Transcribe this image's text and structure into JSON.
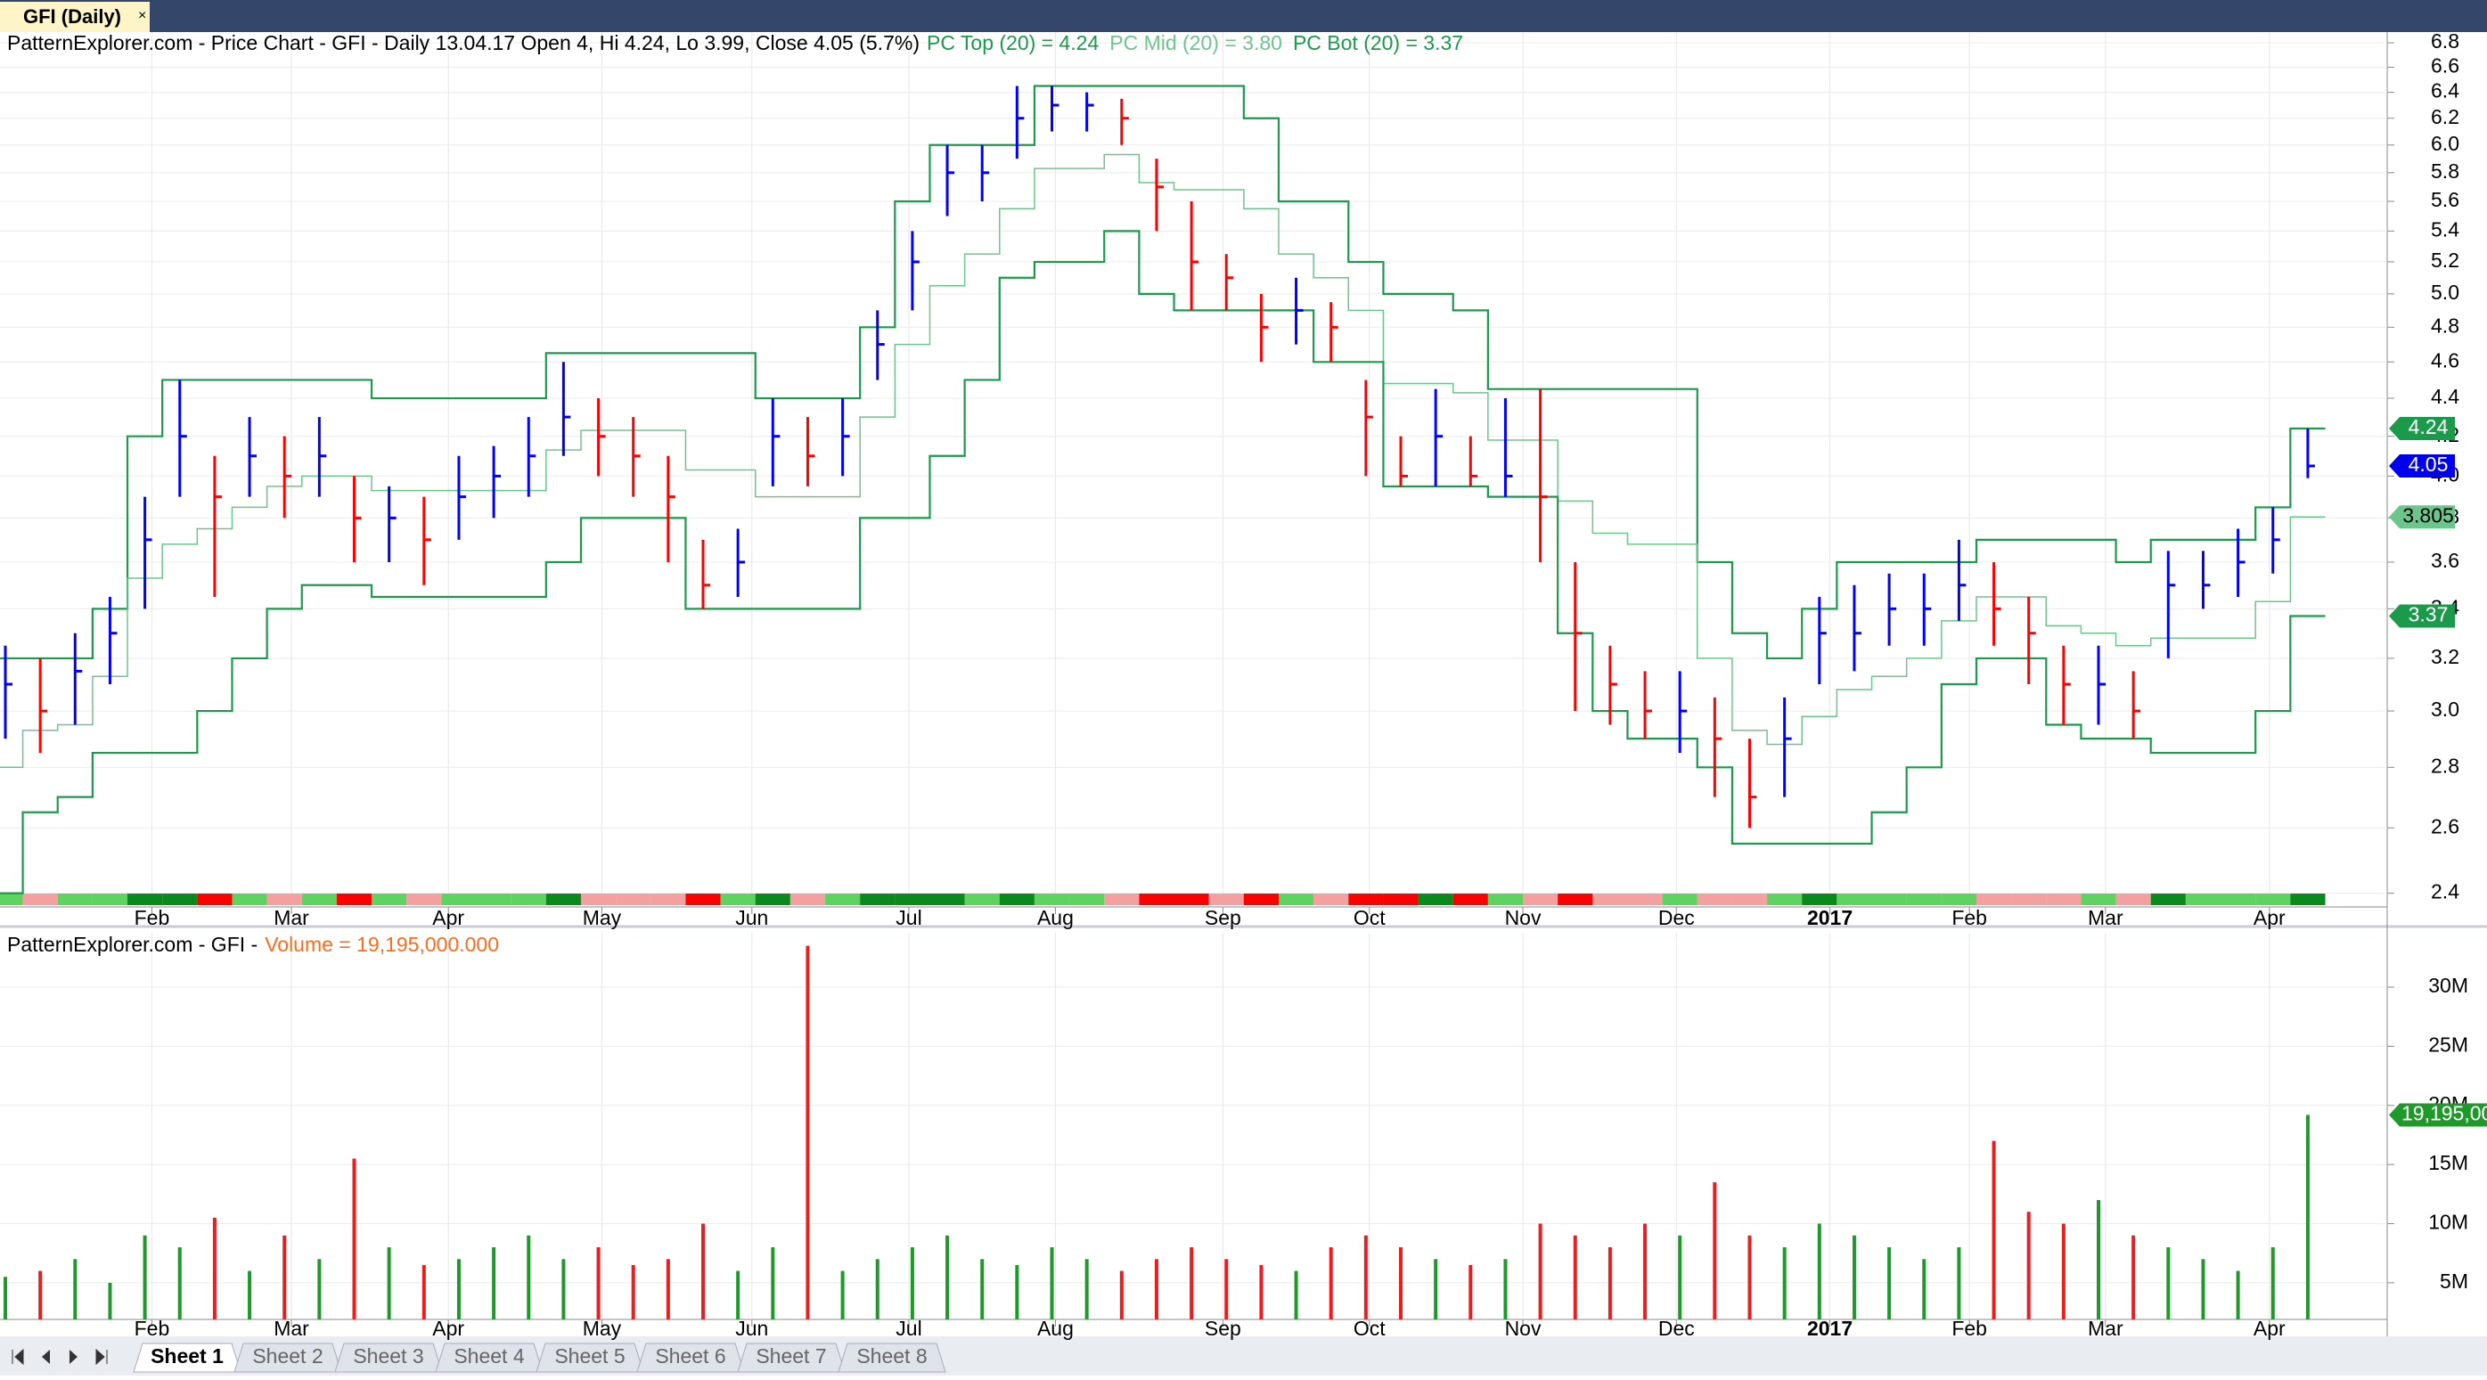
{
  "window": {
    "tab": "GFI (Daily)"
  },
  "sheets": [
    "Sheet 1",
    "Sheet 2",
    "Sheet 3",
    "Sheet 4",
    "Sheet 5",
    "Sheet 6",
    "Sheet 7",
    "Sheet 8"
  ],
  "chart_data": [
    {
      "type": "ohlc",
      "title": "PatternExplorer.com - Price Chart - GFI - Daily 13.04.17 Open 4, Hi 4.24, Lo 3.99, Close 4.05 (5.7%)",
      "categories": [
        null,
        null,
        null,
        null,
        null,
        null,
        null,
        null,
        null,
        null,
        null,
        null,
        null,
        null,
        null,
        null,
        null,
        null,
        null,
        null,
        null,
        null,
        null,
        null,
        null,
        null,
        null,
        null,
        null,
        null,
        null,
        null,
        null,
        null,
        null,
        null,
        null,
        null,
        null,
        null,
        null,
        null,
        null,
        null,
        null,
        null,
        null,
        null,
        null,
        null,
        null,
        null,
        null,
        null,
        null,
        null,
        null,
        null,
        null,
        null,
        null,
        null,
        null,
        null,
        null,
        null,
        null
      ],
      "high": [
        3.25,
        3.2,
        3.3,
        3.45,
        3.9,
        4.5,
        4.1,
        4.3,
        4.2,
        4.3,
        4.0,
        3.95,
        3.9,
        4.1,
        4.15,
        4.3,
        4.6,
        4.4,
        4.3,
        4.1,
        3.7,
        3.75,
        4.4,
        4.3,
        4.4,
        4.9,
        5.4,
        6.0,
        6.0,
        6.45,
        6.45,
        6.4,
        6.35,
        5.9,
        5.6,
        5.25,
        5.0,
        5.1,
        4.95,
        4.5,
        4.2,
        4.45,
        4.2,
        4.4,
        4.45,
        3.6,
        3.25,
        3.15,
        3.15,
        3.05,
        2.9,
        3.05,
        3.45,
        3.5,
        3.55,
        3.55,
        3.7,
        3.6,
        3.45,
        3.25,
        3.25,
        3.15,
        3.65,
        3.65,
        3.75,
        3.85,
        4.24
      ],
      "low": [
        2.9,
        2.85,
        2.95,
        3.1,
        3.4,
        3.9,
        3.45,
        3.9,
        3.8,
        3.9,
        3.6,
        3.6,
        3.5,
        3.7,
        3.8,
        3.9,
        4.1,
        4.0,
        3.9,
        3.6,
        3.4,
        3.45,
        3.95,
        3.95,
        4.0,
        4.5,
        4.9,
        5.5,
        5.6,
        5.9,
        6.1,
        6.1,
        6.0,
        5.4,
        4.9,
        4.9,
        4.6,
        4.7,
        4.6,
        4.0,
        3.95,
        3.95,
        3.95,
        3.9,
        3.6,
        3.0,
        2.95,
        2.9,
        2.85,
        2.7,
        2.6,
        2.7,
        3.1,
        3.15,
        3.25,
        3.25,
        3.35,
        3.25,
        3.1,
        2.95,
        2.95,
        2.9,
        3.2,
        3.4,
        3.45,
        3.55,
        3.99
      ],
      "close": [
        3.1,
        3.0,
        3.15,
        3.3,
        3.7,
        4.2,
        3.9,
        4.1,
        4.0,
        4.1,
        3.8,
        3.8,
        3.7,
        3.9,
        4.0,
        4.1,
        4.3,
        4.2,
        4.1,
        3.9,
        3.5,
        3.6,
        4.2,
        4.1,
        4.2,
        4.7,
        5.2,
        5.8,
        5.8,
        6.2,
        6.3,
        6.3,
        6.2,
        5.7,
        5.2,
        5.1,
        4.8,
        4.9,
        4.8,
        4.3,
        4.0,
        4.2,
        4.0,
        4.0,
        3.9,
        3.3,
        3.1,
        3.0,
        3.0,
        2.9,
        2.7,
        2.9,
        3.3,
        3.3,
        3.4,
        3.4,
        3.5,
        3.4,
        3.3,
        3.1,
        3.1,
        3.0,
        3.5,
        3.5,
        3.6,
        3.7,
        4.05
      ],
      "close_color": "#0000ee",
      "up_color": "#0000ff",
      "down_color": "#ff0000",
      "series": [
        {
          "name": "PC Top (20) = 4.24",
          "color": "#1a9a4a",
          "values": [
            3.2,
            3.2,
            3.2,
            3.4,
            4.2,
            4.5,
            4.5,
            4.5,
            4.5,
            4.5,
            4.5,
            4.4,
            4.4,
            4.4,
            4.4,
            4.4,
            4.65,
            4.65,
            4.65,
            4.65,
            4.65,
            4.65,
            4.4,
            4.4,
            4.4,
            4.8,
            5.6,
            6.0,
            6.0,
            6.0,
            6.45,
            6.45,
            6.45,
            6.45,
            6.45,
            6.45,
            6.2,
            5.6,
            5.6,
            5.2,
            5.0,
            5.0,
            4.9,
            4.45,
            4.45,
            4.45,
            4.45,
            4.45,
            4.45,
            3.6,
            3.3,
            3.2,
            3.4,
            3.6,
            3.6,
            3.6,
            3.6,
            3.7,
            3.7,
            3.7,
            3.7,
            3.6,
            3.7,
            3.7,
            3.7,
            3.85,
            4.24
          ]
        },
        {
          "name": "PC Mid (20) = 3.80",
          "color": "#6cc68c",
          "values": [
            2.8,
            2.93,
            2.95,
            3.13,
            3.53,
            3.68,
            3.75,
            3.85,
            3.95,
            4.0,
            4.0,
            3.93,
            3.93,
            3.93,
            3.93,
            3.93,
            4.13,
            4.23,
            4.23,
            4.23,
            4.03,
            4.03,
            3.9,
            3.9,
            3.9,
            4.3,
            4.7,
            5.05,
            5.25,
            5.55,
            5.83,
            5.83,
            5.93,
            5.73,
            5.68,
            5.68,
            5.55,
            5.25,
            5.1,
            4.9,
            4.48,
            4.48,
            4.43,
            4.18,
            4.18,
            3.88,
            3.73,
            3.68,
            3.68,
            3.2,
            2.93,
            2.88,
            2.98,
            3.08,
            3.13,
            3.2,
            3.35,
            3.45,
            3.45,
            3.33,
            3.3,
            3.25,
            3.28,
            3.28,
            3.28,
            3.43,
            3.805
          ]
        },
        {
          "name": "PC Bot (20) = 3.37",
          "color": "#1a9a4a",
          "values": [
            2.4,
            2.65,
            2.7,
            2.85,
            2.85,
            2.85,
            3.0,
            3.2,
            3.4,
            3.5,
            3.5,
            3.45,
            3.45,
            3.45,
            3.45,
            3.45,
            3.6,
            3.8,
            3.8,
            3.8,
            3.4,
            3.4,
            3.4,
            3.4,
            3.4,
            3.8,
            3.8,
            4.1,
            4.5,
            5.1,
            5.2,
            5.2,
            5.4,
            5.0,
            4.9,
            4.9,
            4.9,
            4.9,
            4.6,
            4.6,
            3.95,
            3.95,
            3.95,
            3.9,
            3.9,
            3.3,
            3.0,
            2.9,
            2.9,
            2.8,
            2.55,
            2.55,
            2.55,
            2.55,
            2.65,
            2.8,
            3.1,
            3.2,
            3.2,
            2.95,
            2.9,
            2.9,
            2.85,
            2.85,
            2.85,
            3.0,
            3.37
          ]
        }
      ],
      "xticks": [
        {
          "value": 4.2,
          "label": "Feb"
        },
        {
          "value": 8.2,
          "label": "Mar"
        },
        {
          "value": 12.7,
          "label": "Apr"
        },
        {
          "value": 17.1,
          "label": "May"
        },
        {
          "value": 21.4,
          "label": "Jun"
        },
        {
          "value": 25.9,
          "label": "Jul"
        },
        {
          "value": 30.1,
          "label": "Aug"
        },
        {
          "value": 34.9,
          "label": "Sep"
        },
        {
          "value": 39.1,
          "label": "Oct"
        },
        {
          "value": 43.5,
          "label": "Nov"
        },
        {
          "value": 47.9,
          "label": "Dec"
        },
        {
          "value": 52.3,
          "label": "2017"
        },
        {
          "value": 56.3,
          "label": "Feb"
        },
        {
          "value": 60.2,
          "label": "Mar"
        },
        {
          "value": 64.9,
          "label": "Apr"
        }
      ],
      "ylim": [
        2.36,
        6.89
      ],
      "log_scale": true,
      "grid": true,
      "yticks": [
        2.4,
        2.6,
        2.8,
        {
          "value": 3,
          "label": "3.0"
        },
        3.2,
        3.4,
        3.6,
        3.8,
        {
          "value": 4,
          "label": "4.0"
        },
        4.2,
        4.4,
        4.6,
        4.8,
        {
          "value": 5,
          "label": "5.0"
        },
        5.2,
        5.4,
        5.6,
        5.8,
        {
          "value": 6,
          "label": "6.0"
        },
        6.2,
        6.4,
        6.6,
        6.8
      ]
    },
    {
      "type": "bar",
      "title": "PatternExplorer.com - GFI -",
      "series": [
        {
          "name": "Volume = 19,195,000.000",
          "legend_color": "#ff6a1a",
          "up_color": "#1f9a2a",
          "down_color": "#ee1c1c",
          "badge_color": "#1f9a2a",
          "values": [
            5500000,
            6000000,
            7000000,
            5000000,
            9000000,
            8000000,
            10500000,
            6000000,
            9000000,
            7000000,
            15500000,
            8000000,
            6500000,
            7000000,
            8000000,
            9000000,
            7000000,
            8000000,
            6500000,
            7000000,
            10000000,
            6000000,
            8000000,
            33500000,
            6000000,
            7000000,
            8000000,
            9000000,
            7000000,
            6500000,
            8000000,
            7000000,
            6000000,
            7000000,
            8000000,
            7000000,
            6500000,
            6000000,
            8000000,
            9000000,
            8000000,
            7000000,
            6500000,
            7000000,
            10000000,
            9000000,
            8000000,
            10000000,
            9000000,
            13500000,
            9000000,
            8000000,
            10000000,
            9000000,
            8000000,
            7000000,
            8000000,
            17000000,
            11000000,
            10000000,
            12000000,
            9000000,
            8000000,
            7000000,
            6000000,
            8000000,
            19195000
          ],
          "value_labels": [
            null,
            null,
            null,
            null,
            null,
            null,
            null,
            null,
            null,
            null,
            null,
            null,
            null,
            null,
            null,
            null,
            null,
            null,
            null,
            null,
            null,
            null,
            null,
            null,
            null,
            null,
            null,
            null,
            null,
            null,
            null,
            null,
            null,
            null,
            null,
            null,
            null,
            null,
            null,
            null,
            null,
            null,
            null,
            null,
            null,
            null,
            null,
            null,
            null,
            null,
            null,
            null,
            null,
            null,
            null,
            null,
            null,
            null,
            null,
            null,
            null,
            null,
            null,
            null,
            null,
            null,
            "19,195,000.000"
          ]
        }
      ],
      "xticks": [
        {
          "value": 4.2,
          "label": "Feb"
        },
        {
          "value": 8.2,
          "label": "Mar"
        },
        {
          "value": 12.7,
          "label": "Apr"
        },
        {
          "value": 17.1,
          "label": "May"
        },
        {
          "value": 21.4,
          "label": "Jun"
        },
        {
          "value": 25.9,
          "label": "Jul"
        },
        {
          "value": 30.1,
          "label": "Aug"
        },
        {
          "value": 34.9,
          "label": "Sep"
        },
        {
          "value": 39.1,
          "label": "Oct"
        },
        {
          "value": 43.5,
          "label": "Nov"
        },
        {
          "value": 47.9,
          "label": "Dec"
        },
        {
          "value": 52.3,
          "label": "2017"
        },
        {
          "value": 56.3,
          "label": "Feb"
        },
        {
          "value": 60.2,
          "label": "Mar"
        },
        {
          "value": 64.9,
          "label": "Apr"
        }
      ],
      "ylim": [
        1900000,
        34600000
      ],
      "grid": true,
      "yticks": [
        {
          "value": 5000000,
          "label": "5M"
        },
        {
          "value": 10000000,
          "label": "10M"
        },
        {
          "value": 15000000,
          "label": "15M"
        },
        {
          "value": 20000000,
          "label": "20M"
        },
        {
          "value": 25000000,
          "label": "25M"
        },
        {
          "value": 30000000,
          "label": "30M"
        }
      ]
    }
  ]
}
